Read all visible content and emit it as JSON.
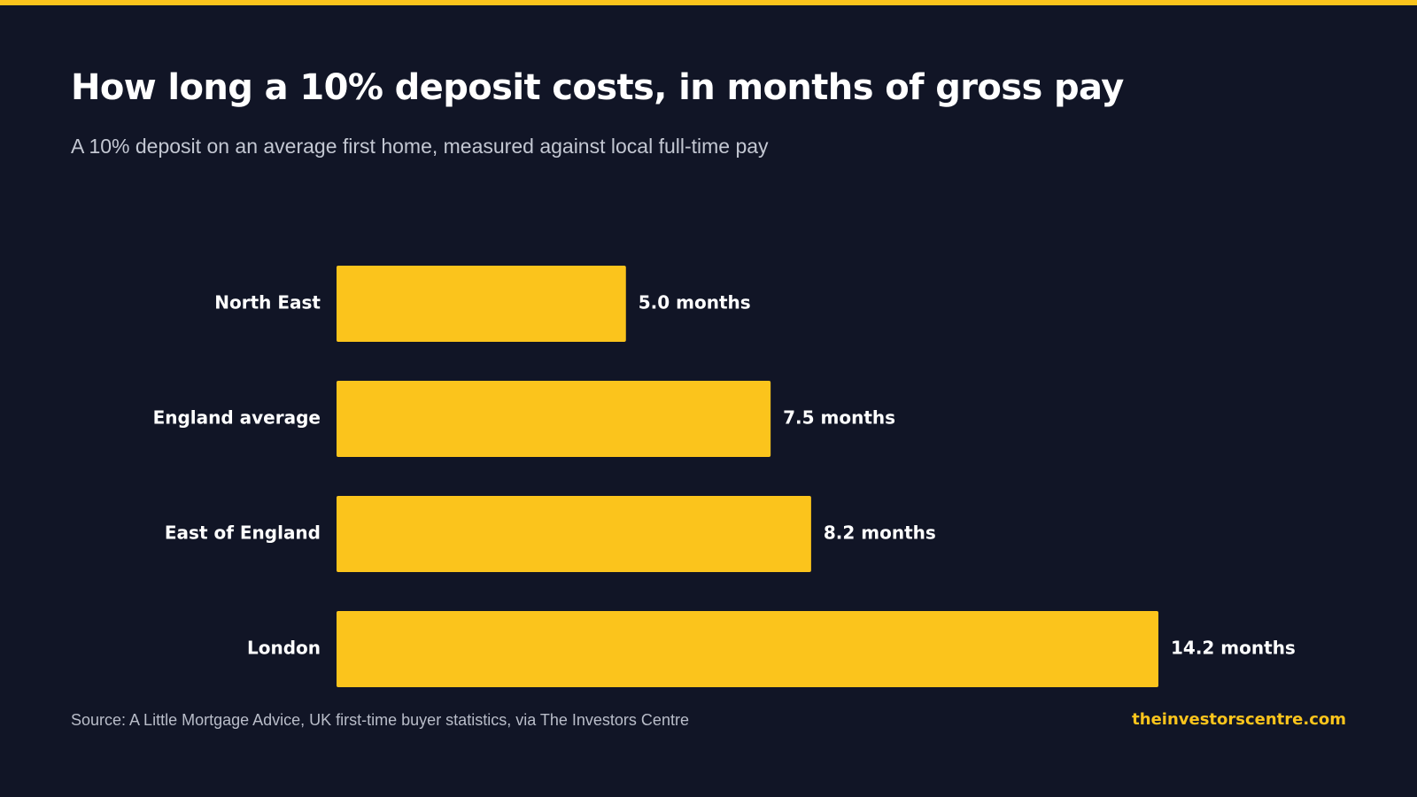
{
  "header": {
    "title": "How long a 10% deposit costs, in months of gross pay",
    "subtitle": "A 10% deposit on an average first home, measured against local full-time pay"
  },
  "footer": {
    "source": "Source: A Little Mortgage Advice, UK first-time buyer statistics, via The Investors Centre",
    "site": "theinvestorscentre.com"
  },
  "colors": {
    "background": "#111526",
    "accent": "#fbc41c",
    "bar": "#fbc41c",
    "text": "#ffffff",
    "muted_text": "#c3c7d2"
  },
  "chart_data": {
    "type": "bar",
    "orientation": "horizontal",
    "categories": [
      "North East",
      "England average",
      "East of England",
      "London"
    ],
    "values": [
      5.0,
      7.5,
      8.2,
      14.2
    ],
    "value_labels": [
      "5.0 months",
      "7.5 months",
      "8.2 months",
      "14.2 months"
    ],
    "unit": "months",
    "xlim": [
      0,
      14.2
    ],
    "grid": false,
    "legend": "none"
  }
}
